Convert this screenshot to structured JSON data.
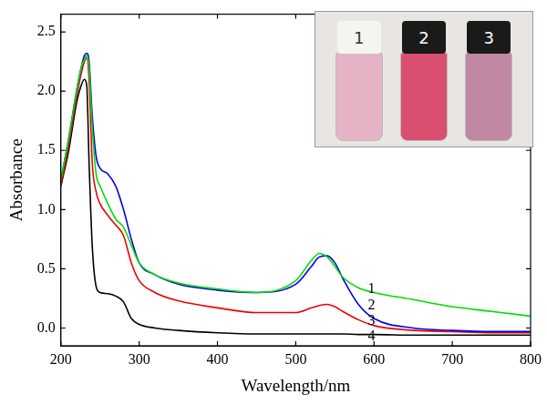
{
  "chart_data": {
    "type": "line",
    "x_label": "Wavelength/nm",
    "y_label": "Absorbance",
    "x": [
      200,
      210,
      220,
      226,
      230,
      233,
      236,
      240,
      245,
      250,
      260,
      270,
      280,
      290,
      300,
      320,
      350,
      400,
      450,
      500,
      520,
      530,
      540,
      550,
      560,
      580,
      600,
      650,
      700,
      750,
      800
    ],
    "series": [
      {
        "color": "#00dd00",
        "values": [
          1.25,
          1.6,
          2.0,
          2.2,
          2.27,
          2.3,
          2.2,
          1.7,
          1.3,
          1.2,
          1.05,
          0.92,
          0.85,
          0.7,
          0.55,
          0.45,
          0.38,
          0.33,
          0.3,
          0.4,
          0.57,
          0.63,
          0.6,
          0.52,
          0.43,
          0.34,
          0.3,
          0.24,
          0.18,
          0.14,
          0.1
        ]
      },
      {
        "color": "#0000ee",
        "values": [
          1.25,
          1.6,
          2.0,
          2.2,
          2.3,
          2.32,
          2.25,
          1.8,
          1.45,
          1.35,
          1.3,
          1.2,
          1.0,
          0.75,
          0.55,
          0.45,
          0.37,
          0.32,
          0.3,
          0.37,
          0.52,
          0.6,
          0.61,
          0.55,
          0.42,
          0.2,
          0.08,
          0.0,
          -0.02,
          -0.03,
          -0.03
        ]
      },
      {
        "color": "#ee0000",
        "values": [
          1.2,
          1.55,
          1.95,
          2.15,
          2.25,
          2.28,
          2.1,
          1.4,
          1.15,
          1.05,
          0.95,
          0.87,
          0.78,
          0.55,
          0.4,
          0.3,
          0.23,
          0.17,
          0.13,
          0.13,
          0.17,
          0.19,
          0.2,
          0.18,
          0.14,
          0.07,
          0.02,
          -0.02,
          -0.03,
          -0.04,
          -0.04
        ]
      },
      {
        "color": "#000000",
        "values": [
          1.2,
          1.5,
          1.9,
          2.05,
          2.1,
          2.05,
          1.4,
          0.7,
          0.35,
          0.3,
          0.29,
          0.27,
          0.22,
          0.08,
          0.03,
          0.0,
          -0.02,
          -0.04,
          -0.05,
          -0.05,
          -0.05,
          -0.05,
          -0.05,
          -0.05,
          -0.05,
          -0.055,
          -0.055,
          -0.06,
          -0.06,
          -0.06,
          -0.06
        ]
      }
    ],
    "annotations": [
      {
        "text": "1",
        "x": 592,
        "y": 0.33
      },
      {
        "text": "2",
        "x": 592,
        "y": 0.19
      },
      {
        "text": "3",
        "x": 592,
        "y": 0.06
      },
      {
        "text": "4",
        "x": 592,
        "y": -0.07
      }
    ],
    "xlim": [
      200,
      800
    ],
    "xticks": [
      200,
      300,
      400,
      500,
      600,
      700,
      800
    ],
    "ylim": [
      -0.15,
      2.65
    ],
    "yticks": [
      {
        "value": 0,
        "label": "0.0"
      },
      {
        "value": 0.5,
        "label": "0.5"
      },
      {
        "value": 1,
        "label": "1.0"
      },
      {
        "value": 1.5,
        "label": "1.5"
      },
      {
        "value": 2,
        "label": "2.0"
      },
      {
        "value": 2.5,
        "label": "2.5"
      }
    ],
    "grid": false,
    "inset": {
      "labels": [
        "1",
        "2",
        "3"
      ],
      "colors": [
        "#e6b3c6",
        "#d94f70",
        "#c088a2"
      ]
    }
  }
}
